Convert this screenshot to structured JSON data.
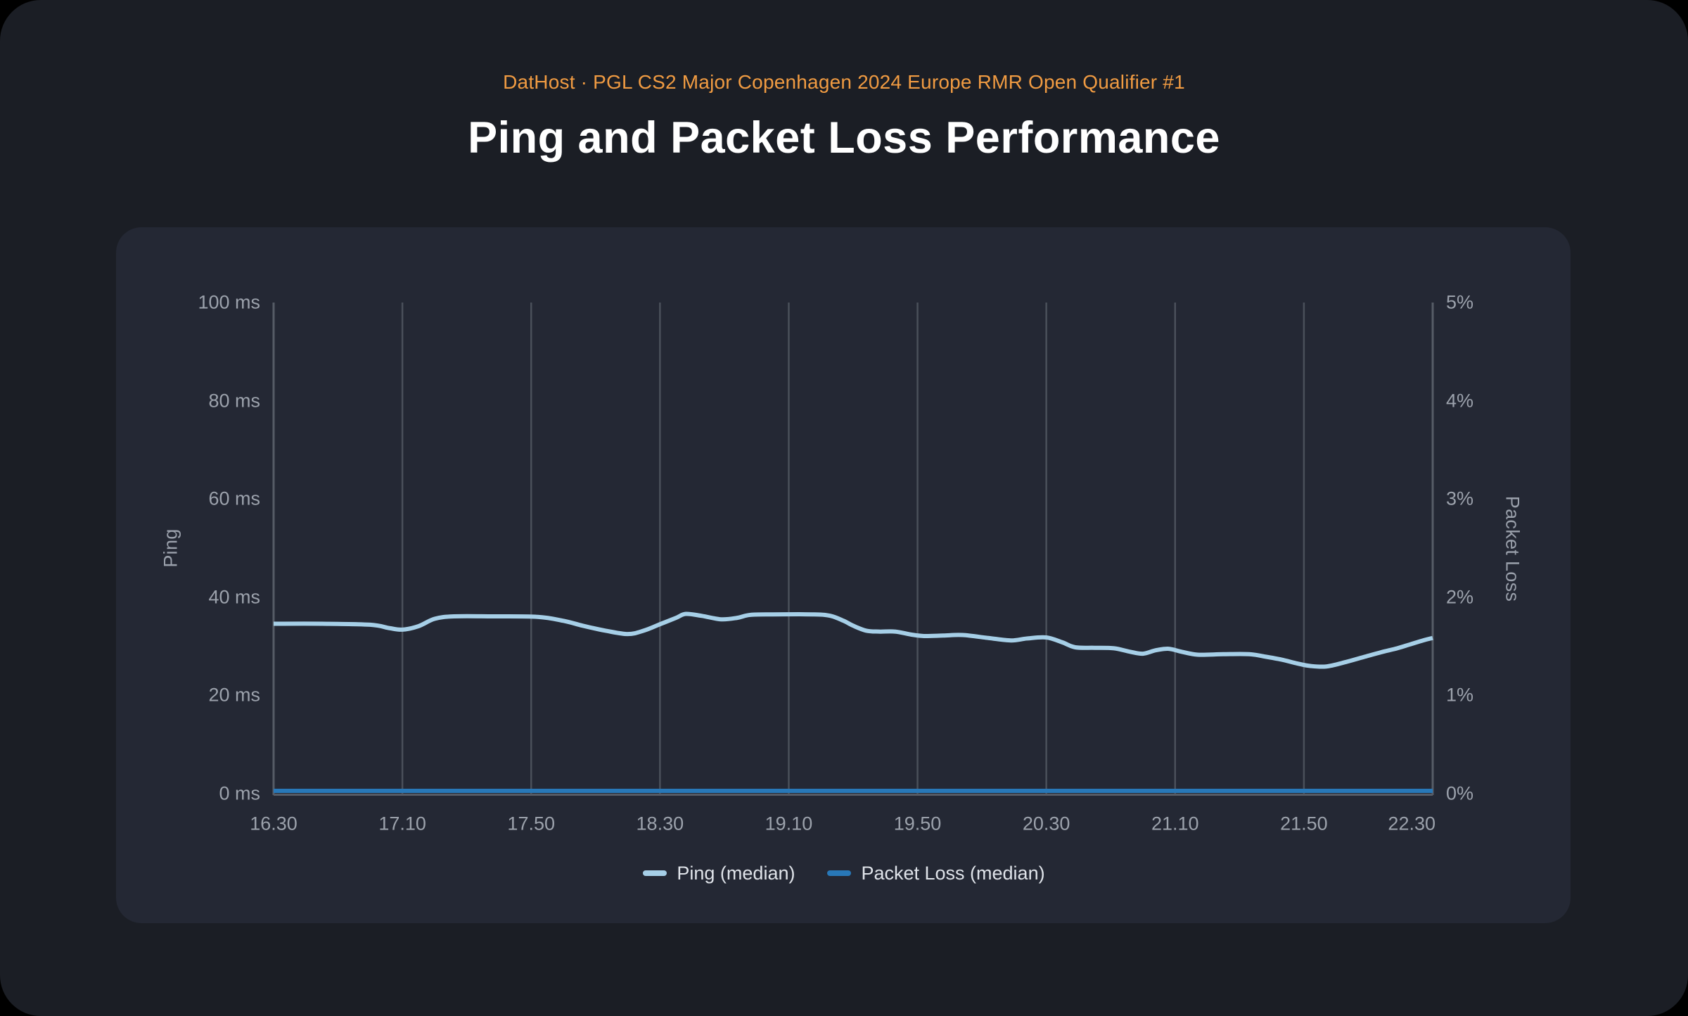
{
  "colors": {
    "background": "#000000",
    "page_background": "#1b1e25",
    "card_background": "#242834",
    "gridline": "#4a505a",
    "axis_line": "#565c66",
    "tick_text": "#9ca2ac",
    "axis_title_text": "#9aa0ab",
    "legend_text": "#dfe3e9",
    "title_text": "#ffffff",
    "subtitle_text": "#f09b42",
    "ping_line": "#a6cfe7",
    "packet_loss_line": "#2878b8"
  },
  "chart_data": {
    "type": "line",
    "subtitle": "DatHost · PGL CS2 Major Copenhagen 2024 Europe RMR Open Qualifier #1",
    "title": "Ping and Packet Loss Performance",
    "x": {
      "tick_labels": [
        "16.30",
        "17.10",
        "17.50",
        "18.30",
        "19.10",
        "19.50",
        "20.30",
        "21.10",
        "21.50",
        "22.30"
      ],
      "range_minutes": [
        0,
        360
      ],
      "tick_interval_minutes": 40,
      "grid": "vertical-only"
    },
    "y_left": {
      "label": "Ping",
      "unit": "ms",
      "min": 0,
      "max": 100,
      "tick_labels": [
        "0 ms",
        "20 ms",
        "40 ms",
        "60 ms",
        "80 ms",
        "100 ms"
      ]
    },
    "y_right": {
      "label": "Packet Loss",
      "unit": "%",
      "min": 0,
      "max": 5,
      "tick_labels": [
        "0%",
        "1%",
        "2%",
        "3%",
        "4%",
        "5%"
      ]
    },
    "series": [
      {
        "name": "Ping (median)",
        "axis": "left",
        "color": "#a6cfe7",
        "points": [
          [
            0,
            34.6
          ],
          [
            15,
            34.6
          ],
          [
            30,
            34.4
          ],
          [
            36,
            33.7
          ],
          [
            40,
            33.4
          ],
          [
            45,
            34.1
          ],
          [
            50,
            35.6
          ],
          [
            56,
            36.1
          ],
          [
            68,
            36.1
          ],
          [
            82,
            36.0
          ],
          [
            90,
            35.2
          ],
          [
            96,
            34.2
          ],
          [
            103,
            33.2
          ],
          [
            110,
            32.5
          ],
          [
            115,
            33.2
          ],
          [
            120,
            34.5
          ],
          [
            125,
            35.8
          ],
          [
            128,
            36.6
          ],
          [
            133,
            36.2
          ],
          [
            139,
            35.5
          ],
          [
            144,
            35.8
          ],
          [
            148,
            36.4
          ],
          [
            155,
            36.5
          ],
          [
            168,
            36.5
          ],
          [
            173,
            36.2
          ],
          [
            177,
            35.2
          ],
          [
            180,
            34.2
          ],
          [
            184,
            33.2
          ],
          [
            188,
            33.0
          ],
          [
            193,
            33.0
          ],
          [
            198,
            32.4
          ],
          [
            202,
            32.1
          ],
          [
            208,
            32.2
          ],
          [
            214,
            32.3
          ],
          [
            222,
            31.7
          ],
          [
            229,
            31.2
          ],
          [
            234,
            31.6
          ],
          [
            240,
            31.8
          ],
          [
            245,
            30.8
          ],
          [
            249,
            29.8
          ],
          [
            255,
            29.7
          ],
          [
            261,
            29.6
          ],
          [
            266,
            28.9
          ],
          [
            270,
            28.5
          ],
          [
            274,
            29.2
          ],
          [
            278,
            29.5
          ],
          [
            282,
            28.9
          ],
          [
            287,
            28.3
          ],
          [
            295,
            28.4
          ],
          [
            303,
            28.4
          ],
          [
            308,
            27.9
          ],
          [
            313,
            27.3
          ],
          [
            318,
            26.5
          ],
          [
            322,
            26.0
          ],
          [
            327,
            25.9
          ],
          [
            333,
            26.8
          ],
          [
            339,
            27.9
          ],
          [
            344,
            28.8
          ],
          [
            349,
            29.6
          ],
          [
            353,
            30.4
          ],
          [
            357,
            31.2
          ],
          [
            360,
            31.7
          ]
        ]
      },
      {
        "name": "Packet Loss (median)",
        "axis": "right",
        "color": "#2878b8",
        "points": [
          [
            0,
            0
          ],
          [
            60,
            0
          ],
          [
            120,
            0
          ],
          [
            180,
            0
          ],
          [
            240,
            0
          ],
          [
            300,
            0
          ],
          [
            360,
            0
          ]
        ]
      }
    ],
    "legend_position": "bottom"
  }
}
